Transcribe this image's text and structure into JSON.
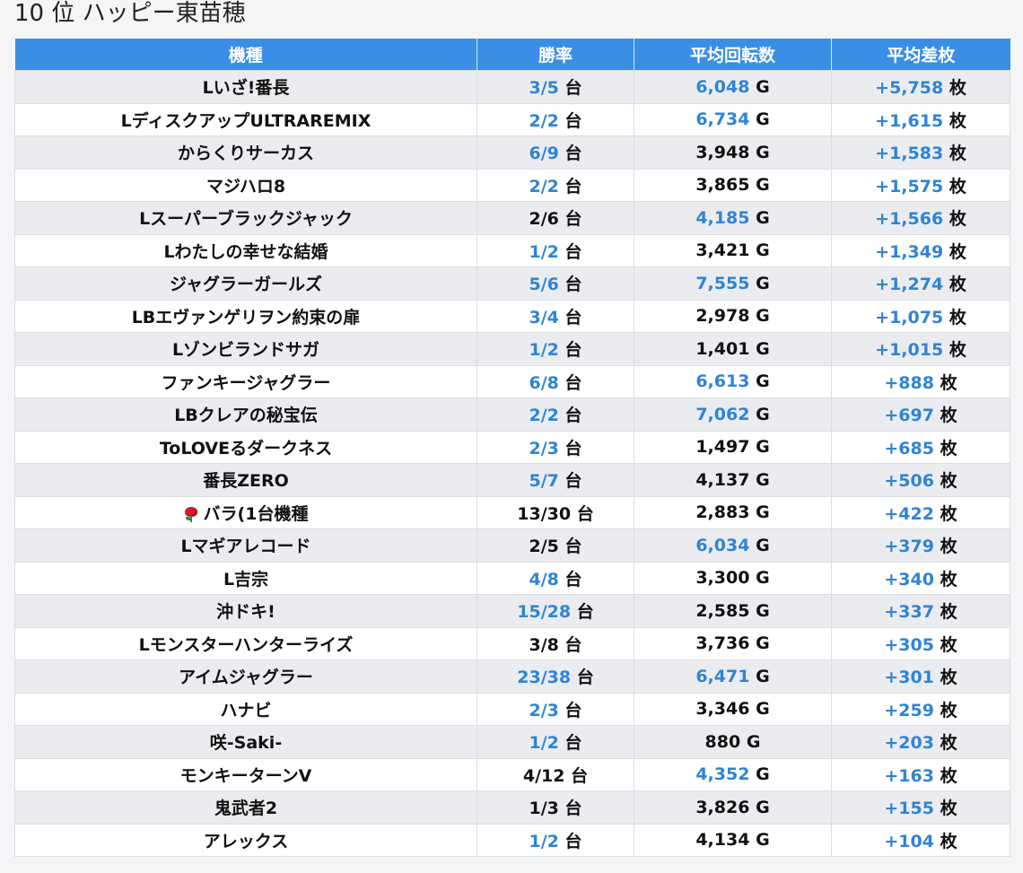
{
  "title": "10 位 ハッピー東苗穂",
  "columns": [
    "機種",
    "勝率",
    "平均回転数",
    "平均差枚"
  ],
  "win_unit": "台",
  "spin_unit": "G",
  "medal_unit": "枚",
  "colors": {
    "header": "#3a8ee6",
    "highlight": "#2f84d6",
    "row_alt": "#ebecef"
  },
  "rows": [
    {
      "name": "Lいざ!番長",
      "win": "3/5",
      "win_hl": true,
      "spins": "6,048",
      "spins_hl": true,
      "diff": "+5,758"
    },
    {
      "name": "LディスクアップULTRAREMIX",
      "win": "2/2",
      "win_hl": true,
      "spins": "6,734",
      "spins_hl": true,
      "diff": "+1,615"
    },
    {
      "name": "からくりサーカス",
      "win": "6/9",
      "win_hl": true,
      "spins": "3,948",
      "spins_hl": false,
      "diff": "+1,583"
    },
    {
      "name": "マジハロ8",
      "win": "2/2",
      "win_hl": true,
      "spins": "3,865",
      "spins_hl": false,
      "diff": "+1,575"
    },
    {
      "name": "Lスーパーブラックジャック",
      "win": "2/6",
      "win_hl": false,
      "spins": "4,185",
      "spins_hl": true,
      "diff": "+1,566"
    },
    {
      "name": "Lわたしの幸せな結婚",
      "win": "1/2",
      "win_hl": true,
      "spins": "3,421",
      "spins_hl": false,
      "diff": "+1,349"
    },
    {
      "name": "ジャグラーガールズ",
      "win": "5/6",
      "win_hl": true,
      "spins": "7,555",
      "spins_hl": true,
      "diff": "+1,274"
    },
    {
      "name": "LBエヴァンゲリヲン約束の扉",
      "win": "3/4",
      "win_hl": true,
      "spins": "2,978",
      "spins_hl": false,
      "diff": "+1,075"
    },
    {
      "name": "Lゾンビランドサガ",
      "win": "1/2",
      "win_hl": true,
      "spins": "1,401",
      "spins_hl": false,
      "diff": "+1,015"
    },
    {
      "name": "ファンキージャグラー",
      "win": "6/8",
      "win_hl": true,
      "spins": "6,613",
      "spins_hl": true,
      "diff": "+888"
    },
    {
      "name": "LBクレアの秘宝伝",
      "win": "2/2",
      "win_hl": true,
      "spins": "7,062",
      "spins_hl": true,
      "diff": "+697"
    },
    {
      "name": "ToLOVEるダークネス",
      "win": "2/3",
      "win_hl": true,
      "spins": "1,497",
      "spins_hl": false,
      "diff": "+685"
    },
    {
      "name": "番長ZERO",
      "win": "5/7",
      "win_hl": true,
      "spins": "4,137",
      "spins_hl": false,
      "diff": "+506"
    },
    {
      "name": "バラ(1台機種",
      "rose": true,
      "win": "13/30",
      "win_hl": false,
      "spins": "2,883",
      "spins_hl": false,
      "diff": "+422"
    },
    {
      "name": "Lマギアレコード",
      "win": "2/5",
      "win_hl": false,
      "spins": "6,034",
      "spins_hl": true,
      "diff": "+379"
    },
    {
      "name": "L吉宗",
      "win": "4/8",
      "win_hl": true,
      "spins": "3,300",
      "spins_hl": false,
      "diff": "+340"
    },
    {
      "name": "沖ドキ!",
      "win": "15/28",
      "win_hl": true,
      "spins": "2,585",
      "spins_hl": false,
      "diff": "+337"
    },
    {
      "name": "Lモンスターハンターライズ",
      "win": "3/8",
      "win_hl": false,
      "spins": "3,736",
      "spins_hl": false,
      "diff": "+305"
    },
    {
      "name": "アイムジャグラー",
      "win": "23/38",
      "win_hl": true,
      "spins": "6,471",
      "spins_hl": true,
      "diff": "+301"
    },
    {
      "name": "ハナビ",
      "win": "2/3",
      "win_hl": true,
      "spins": "3,346",
      "spins_hl": false,
      "diff": "+259"
    },
    {
      "name": "咲-Saki-",
      "win": "1/2",
      "win_hl": true,
      "spins": "880",
      "spins_hl": false,
      "diff": "+203"
    },
    {
      "name": "モンキーターンV",
      "win": "4/12",
      "win_hl": false,
      "spins": "4,352",
      "spins_hl": true,
      "diff": "+163"
    },
    {
      "name": "鬼武者2",
      "win": "1/3",
      "win_hl": false,
      "spins": "3,826",
      "spins_hl": false,
      "diff": "+155"
    },
    {
      "name": "アレックス",
      "win": "1/2",
      "win_hl": true,
      "spins": "4,134",
      "spins_hl": false,
      "diff": "+104"
    }
  ]
}
